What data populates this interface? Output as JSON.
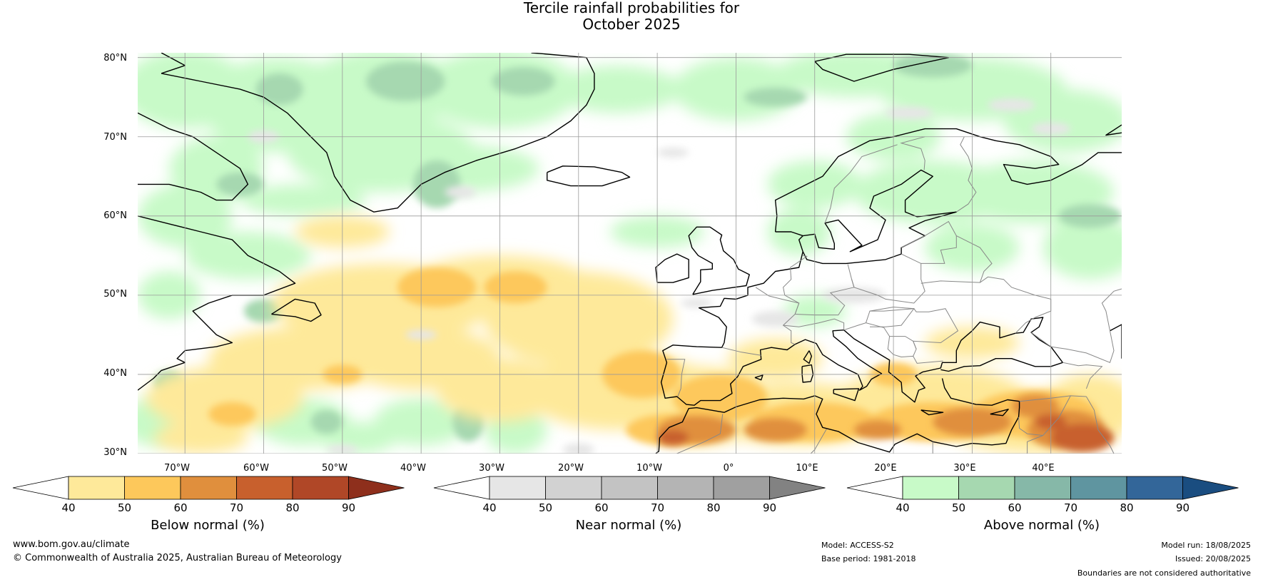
{
  "title": {
    "line1": "Tercile rainfall probabilities for",
    "line2": "October 2025"
  },
  "map": {
    "lat_labels": [
      "80°N",
      "70°N",
      "60°N",
      "50°N",
      "40°N",
      "30°N"
    ],
    "lon_labels": [
      "70°W",
      "60°W",
      "50°W",
      "40°W",
      "30°W",
      "20°W",
      "10°W",
      "0°",
      "10°E",
      "20°E",
      "30°E",
      "40°E"
    ],
    "colors": {
      "below": [
        "#fee99a",
        "#fdc85b",
        "#e08f3d",
        "#c8602d",
        "#b04727",
        "#8e2f1c"
      ],
      "near": [
        "#e6e6e6",
        "#d2d2d2",
        "#c3c3c3",
        "#b4b4b4",
        "#a0a0a0",
        "#828282"
      ],
      "above": [
        "#c8fac8",
        "#a6d8b0",
        "#86b8a8",
        "#5f95a0",
        "#336699",
        "#1a4d80"
      ],
      "land": "#000000",
      "border": "#888888",
      "grid": "#9a9a9a"
    }
  },
  "colorbars": [
    {
      "id": "below",
      "label": "Below normal (%)",
      "ticks": [
        "40",
        "50",
        "60",
        "70",
        "80",
        "90"
      ]
    },
    {
      "id": "near",
      "label": "Near normal (%)",
      "ticks": [
        "40",
        "50",
        "60",
        "70",
        "80",
        "90"
      ]
    },
    {
      "id": "above",
      "label": "Above normal (%)",
      "ticks": [
        "40",
        "50",
        "60",
        "70",
        "80",
        "90"
      ]
    }
  ],
  "footer": {
    "website": "www.bom.gov.au/climate",
    "copyright": "© Commonwealth of Australia 2025, Australian Bureau of Meteorology",
    "model": "Model: ACCESS-S2",
    "base_period": "Base period: 1981-2018",
    "model_run": "Model run: 18/08/2025",
    "issued": "Issued: 20/08/2025",
    "disclaimer": "Boundaries are not considered authoritative"
  }
}
